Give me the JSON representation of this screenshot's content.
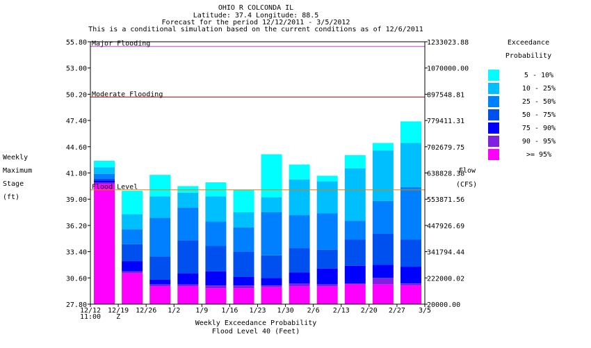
{
  "header": {
    "line1": "OHIO R COLCONDA IL",
    "line2": "Latitude: 37.4    Longitude:  88.5",
    "line3": "Forecast for the period 12/12/2011 - 3/5/2012",
    "line4": "This is a conditional simulation based on the current conditions as of 12/6/2011"
  },
  "chart_data": {
    "type": "bar",
    "title": "OHIO R COLCONDA IL",
    "xlabel": "Weekly Exceedance Probability",
    "xlabel2": "Flood Level 40 (Feet)",
    "ylabel_lines": [
      "Weekly",
      "Maximum",
      "Stage",
      "(ft)"
    ],
    "y2label_lines": [
      "Flow",
      "(CFS)"
    ],
    "ylim": [
      27.8,
      55.8
    ],
    "yticks": [
      "27.80",
      "30.60",
      "33.40",
      "36.20",
      "39.00",
      "41.80",
      "44.60",
      "47.40",
      "50.20",
      "53.00",
      "55.80"
    ],
    "y2ticks": [
      "20000.00",
      "222000.02",
      "341794.44",
      "447926.69",
      "553871.56",
      "638828.38",
      "702679.75",
      "779411.31",
      "897548.81",
      "1070000.00",
      "1233023.88"
    ],
    "categories": [
      "12/12",
      "12/19",
      "12/26",
      "1/2",
      "1/9",
      "1/16",
      "1/23",
      "1/30",
      "2/6",
      "2/13",
      "2/20",
      "2/27",
      "3/5"
    ],
    "x_first_sublabel": "11:00",
    "x_second_sublabel": "Z",
    "thresholds": [
      {
        "label": "Major Flooding",
        "value": 55.3,
        "color": "#c040c0"
      },
      {
        "label": "Moderate Flooding",
        "value": 49.9,
        "color": "#c00000"
      },
      {
        "label": "Flood Level",
        "value": 40.0,
        "color": "#e08000"
      }
    ],
    "legend_title": [
      "Exceedance",
      "Probability"
    ],
    "legend": [
      {
        "label": "5 - 10%",
        "color": "#00ffff"
      },
      {
        "label": "10 - 25%",
        "color": "#00bfff"
      },
      {
        "label": "25 - 50%",
        "color": "#0080ff"
      },
      {
        "label": "50 - 75%",
        "color": "#0050f0"
      },
      {
        "label": "75 - 90%",
        "color": "#0000ff"
      },
      {
        "label": "90 - 95%",
        "color": "#8020e0"
      },
      {
        "label": ">= 95%",
        "color": "#ff00ff"
      }
    ],
    "bars": [
      {
        "week": "12/12",
        "levels": [
          43.1,
          42.4,
          41.7,
          41.2,
          41.0,
          40.8,
          40.6,
          27.8
        ]
      },
      {
        "week": "12/19",
        "levels": [
          39.9,
          37.4,
          35.8,
          34.2,
          32.4,
          31.3,
          31.1,
          27.8
        ]
      },
      {
        "week": "12/26",
        "levels": [
          41.6,
          39.3,
          37.0,
          32.9,
          30.4,
          29.9,
          29.7,
          27.8
        ]
      },
      {
        "week": "1/2",
        "levels": [
          40.4,
          39.7,
          38.1,
          34.6,
          31.1,
          29.9,
          29.7,
          27.8
        ]
      },
      {
        "week": "1/9",
        "levels": [
          40.8,
          39.3,
          36.6,
          34.0,
          31.3,
          29.8,
          29.5,
          27.8
        ]
      },
      {
        "week": "1/16",
        "levels": [
          40.0,
          37.6,
          36.0,
          33.4,
          30.7,
          29.8,
          29.5,
          27.8
        ]
      },
      {
        "week": "1/23",
        "levels": [
          43.8,
          39.2,
          37.6,
          33.0,
          30.6,
          29.8,
          29.6,
          27.8
        ]
      },
      {
        "week": "1/30",
        "levels": [
          42.7,
          41.1,
          37.3,
          33.8,
          31.2,
          30.0,
          29.7,
          27.8
        ]
      },
      {
        "week": "2/6",
        "levels": [
          41.5,
          40.9,
          37.5,
          33.6,
          31.6,
          29.9,
          29.7,
          27.8
        ]
      },
      {
        "week": "2/13",
        "levels": [
          43.7,
          42.3,
          36.7,
          34.7,
          31.9,
          30.0,
          29.9,
          27.8
        ]
      },
      {
        "week": "2/20",
        "levels": [
          45.0,
          44.2,
          38.8,
          35.3,
          32.0,
          30.6,
          29.9,
          27.8
        ]
      },
      {
        "week": "2/27",
        "levels": [
          47.3,
          45.0,
          40.3,
          34.7,
          31.8,
          30.0,
          29.8,
          27.8
        ]
      }
    ]
  }
}
